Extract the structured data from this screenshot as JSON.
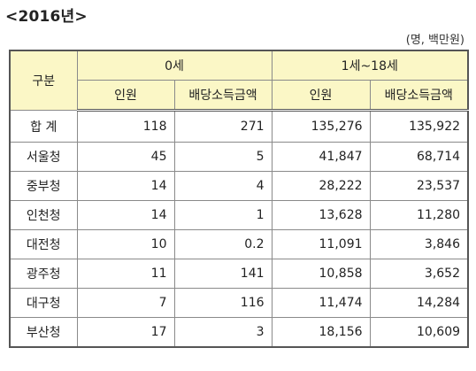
{
  "heading": "<2016년>",
  "unit": "(명, 백만원)",
  "table": {
    "corner": "구분",
    "group_a": "0세",
    "group_b": "1세~18세",
    "sub_headers": [
      "인원",
      "배당소득금액",
      "인원",
      "배당소득금액"
    ],
    "rows": [
      [
        "합 계",
        "118",
        "271",
        "135,276",
        "135,922"
      ],
      [
        "서울청",
        "45",
        "5",
        "41,847",
        "68,714"
      ],
      [
        "중부청",
        "14",
        "4",
        "28,222",
        "23,537"
      ],
      [
        "인천청",
        "14",
        "1",
        "13,628",
        "11,280"
      ],
      [
        "대전청",
        "10",
        "0.2",
        "11,091",
        "3,846"
      ],
      [
        "광주청",
        "11",
        "141",
        "10,858",
        "3,652"
      ],
      [
        "대구청",
        "7",
        "116",
        "11,474",
        "14,284"
      ],
      [
        "부산청",
        "17",
        "3",
        "18,156",
        "10,609"
      ]
    ]
  }
}
